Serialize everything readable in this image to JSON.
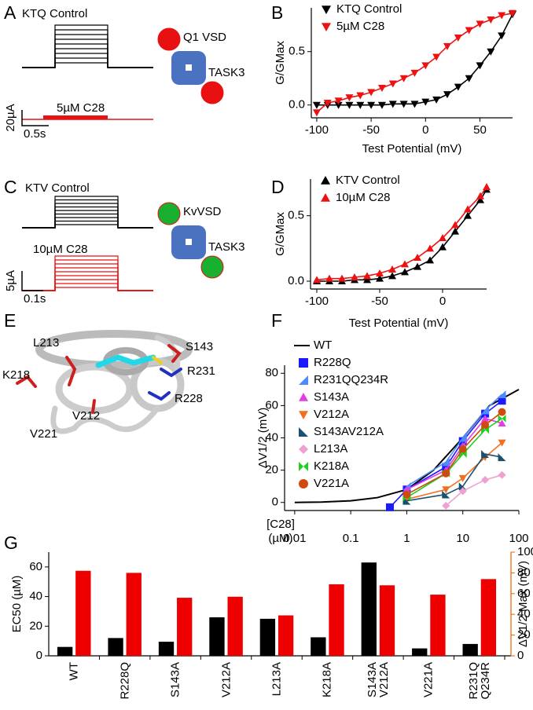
{
  "traces": [
    {
      "label": "A",
      "control": "KTQ Control",
      "drug": "5µM C28",
      "current_scale": "20µA",
      "time_scale": "0.5s",
      "vsd": "Q1 VSD",
      "channel": "TASK3"
    },
    {
      "label": "C",
      "control": "KTV Control",
      "drug": "10µM C28",
      "current_scale": "5µA",
      "time_scale": "0.1s",
      "vsd": "KvVSD",
      "channel": "TASK3"
    }
  ],
  "structure": {
    "label": "E",
    "residues": [
      "L213",
      "S143",
      "R231",
      "K218",
      "R228",
      "V212",
      "V221"
    ]
  },
  "chart_data": [
    {
      "label": "B",
      "type": "line",
      "xlabel": "Test Potential (mV)",
      "ylabel": "G/GMax",
      "x": [
        -100,
        -90,
        -80,
        -70,
        -60,
        -50,
        -40,
        -30,
        -20,
        -10,
        0,
        10,
        20,
        30,
        40,
        50,
        60,
        70,
        80
      ],
      "series": [
        {
          "name": "KTQ Control",
          "color": "#000000",
          "marker": "triangle-down",
          "values": [
            0,
            0,
            0,
            0,
            0,
            0,
            0,
            0.01,
            0.01,
            0.01,
            0.03,
            0.05,
            0.1,
            0.17,
            0.25,
            0.37,
            0.5,
            0.65,
            0.85
          ]
        },
        {
          "name": "5µM C28",
          "color": "#ee1111",
          "marker": "triangle-down",
          "values": [
            -0.07,
            0.02,
            0.04,
            0.07,
            0.09,
            0.12,
            0.16,
            0.2,
            0.25,
            0.3,
            0.37,
            0.45,
            0.55,
            0.63,
            0.7,
            0.76,
            0.8,
            0.84,
            0.86
          ]
        }
      ],
      "xlim": [
        -105,
        80
      ],
      "ylim": [
        -0.12,
        0.91
      ],
      "xticks": [
        -100,
        -50,
        0,
        50
      ],
      "yticks": [
        {
          "value": 0,
          "label": "0.0"
        },
        0.5
      ],
      "legend": "upper left"
    },
    {
      "label": "D",
      "type": "line",
      "xlabel": "Test Potential (mV)",
      "ylabel": "G/GMax",
      "x": [
        -100,
        -90,
        -80,
        -70,
        -60,
        -50,
        -40,
        -30,
        -20,
        -10,
        0,
        10,
        20,
        30,
        35
      ],
      "series": [
        {
          "name": "KTV Control",
          "color": "#000000",
          "marker": "triangle-up",
          "values": [
            0,
            0,
            0,
            0.01,
            0.01,
            0.02,
            0.04,
            0.07,
            0.11,
            0.16,
            0.26,
            0.38,
            0.5,
            0.62,
            0.7
          ]
        },
        {
          "name": "10µM C28",
          "color": "#ee1111",
          "marker": "triangle-up",
          "values": [
            0.01,
            0.02,
            0.02,
            0.03,
            0.04,
            0.06,
            0.09,
            0.13,
            0.18,
            0.25,
            0.33,
            0.43,
            0.55,
            0.65,
            0.72
          ]
        }
      ],
      "xlim": [
        -105,
        35
      ],
      "ylim": [
        -0.06,
        0.78
      ],
      "xticks": [
        -100,
        -50,
        0
      ],
      "yticks": [
        {
          "value": 0,
          "label": "0.0"
        },
        0.5
      ],
      "legend": "upper left"
    },
    {
      "label": "F",
      "type": "line",
      "xscale": "log",
      "xlabel": [
        "[C28]",
        "(µM)"
      ],
      "ylabel": "ΔV1/2 (mV)",
      "x": [
        0.5,
        1,
        5,
        10,
        25,
        50
      ],
      "series": [
        {
          "name": "WT",
          "color": "#000000",
          "x": [
            0.01,
            0.03,
            0.1,
            0.3,
            1,
            3,
            10,
            30,
            100
          ],
          "values": [
            0,
            0.2,
            1,
            3,
            8,
            20,
            40,
            60,
            70
          ]
        },
        {
          "name": "R228Q",
          "color": "#1a1aff",
          "marker": "square",
          "values": [
            -3,
            8,
            22,
            38,
            55,
            63
          ]
        },
        {
          "name": "R231QQ234R",
          "color": "#4d8cff",
          "marker": "wedge",
          "values": [
            null,
            10,
            25,
            40,
            57,
            67
          ]
        },
        {
          "name": "S143A",
          "color": "#e040e0",
          "marker": "triangle-up",
          "values": [
            null,
            8,
            20,
            35,
            52,
            49
          ]
        },
        {
          "name": "V212A",
          "color": "#f07020",
          "marker": "triangle-down",
          "values": [
            null,
            2,
            8,
            15,
            28,
            37
          ]
        },
        {
          "name": "S143AV212A",
          "color": "#1a5070",
          "marker": "flag",
          "values": [
            null,
            1,
            5,
            10,
            30,
            28
          ]
        },
        {
          "name": "L213A",
          "color": "#f0a0d0",
          "marker": "diamond",
          "values": [
            null,
            null,
            -2,
            7,
            14,
            17
          ]
        },
        {
          "name": "K218A",
          "color": "#20d020",
          "marker": "bowtie",
          "values": [
            null,
            3,
            18,
            30,
            45,
            52
          ]
        },
        {
          "name": "V221A",
          "color": "#d04a10",
          "marker": "circle",
          "values": [
            null,
            5,
            18,
            33,
            48,
            56
          ]
        }
      ],
      "xlim": [
        0.0066,
        100
      ],
      "ylim": [
        -5,
        85
      ],
      "xticks": [
        0.01,
        0.1,
        1,
        10,
        100
      ],
      "yticks": [
        0,
        20,
        40,
        60,
        80
      ],
      "legend": "upper left"
    },
    {
      "label": "G",
      "type": "bar",
      "ylabel": "EC50 (µM)",
      "y2label": "ΔV1/2 Max (mV)",
      "y2color": "#f06000",
      "categories": [
        "WT",
        "R228Q",
        "S143A",
        "V212A",
        "L213A",
        "K218A",
        "S143A\nV212A",
        "V221A",
        "R231Q\nQ234R"
      ],
      "series": [
        {
          "color": "#000000",
          "values": [
            6,
            12,
            9.5,
            26,
            25,
            12.5,
            63,
            5,
            8
          ]
        },
        {
          "color": "#ee0000",
          "axis": "y2",
          "values": [
            82,
            80,
            56,
            57,
            39,
            69,
            68,
            59,
            74
          ]
        }
      ],
      "ylim": [
        0,
        70
      ],
      "yticks": [
        0,
        20,
        40,
        60
      ],
      "y2lim": [
        0,
        100
      ],
      "y2ticks": [
        0,
        20,
        40,
        60,
        80,
        100
      ]
    }
  ]
}
